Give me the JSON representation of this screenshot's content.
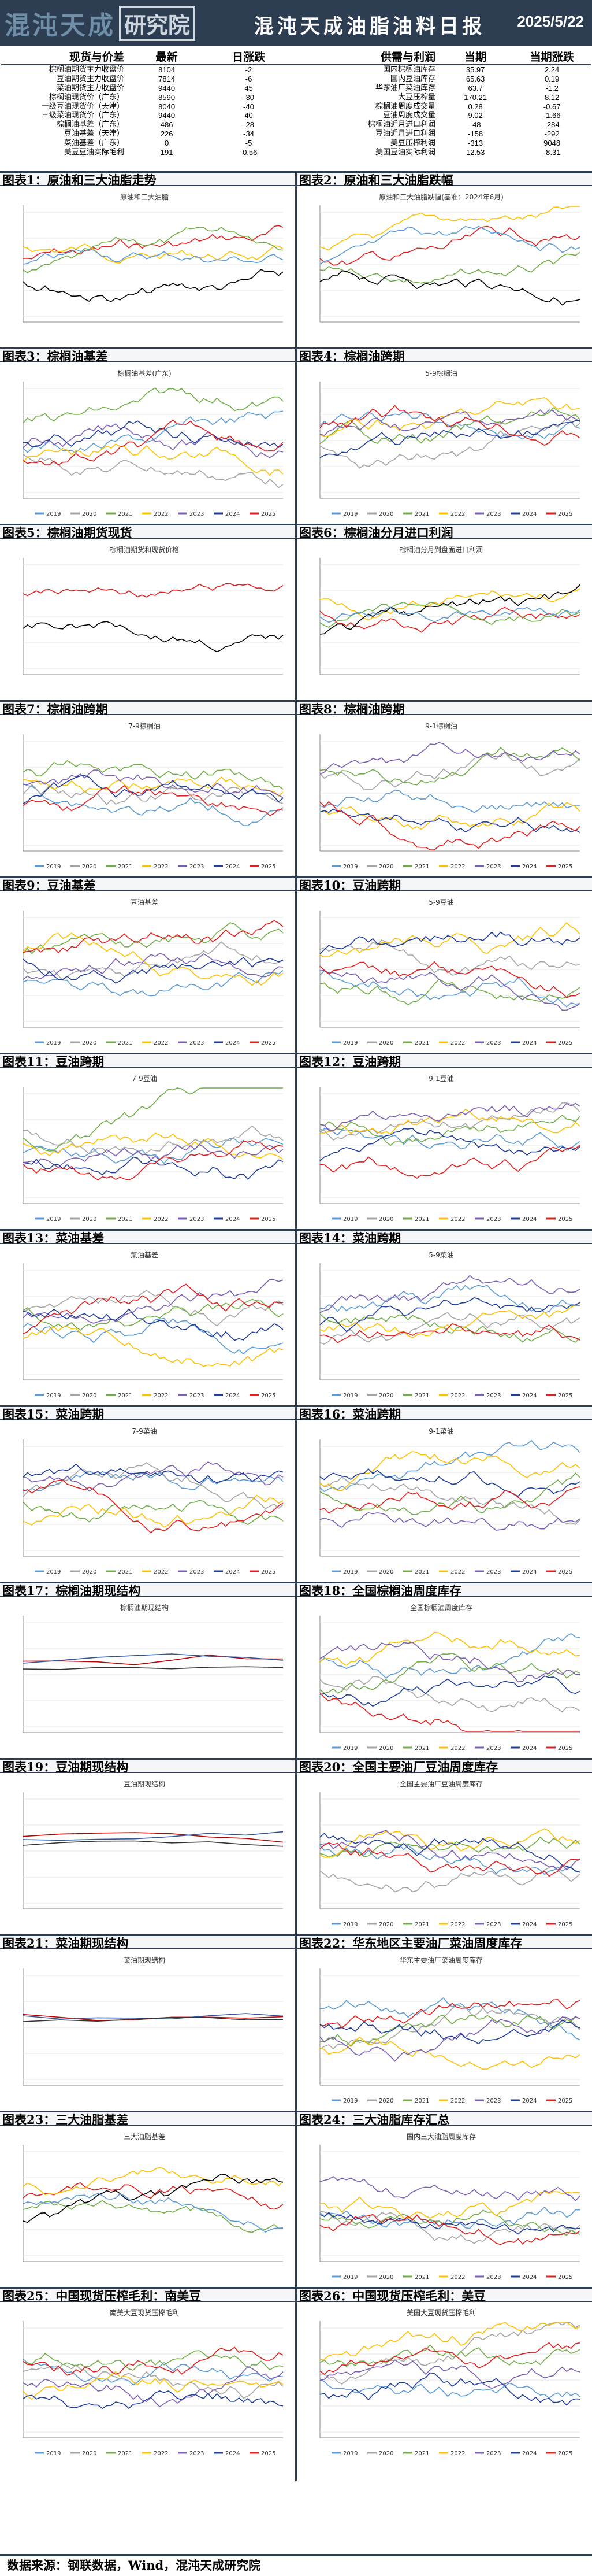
{
  "header": {
    "logo_chars": [
      "混",
      "沌",
      "天",
      "成"
    ],
    "logo_box": "研究院",
    "title": "混沌天成油脂油料日报",
    "date": "2025/5/22"
  },
  "table": {
    "headers": [
      "现货与价差",
      "最新",
      "日涨跌",
      "供需与利润",
      "当期",
      "当期涨跌"
    ],
    "rows": [
      [
        "棕榈油期货主力收盘价",
        "8104",
        "-2",
        "国内棕榈油库存",
        "35.97",
        "2.24"
      ],
      [
        "豆油期货主力收盘价",
        "7814",
        "-6",
        "国内豆油库存",
        "65.63",
        "0.19"
      ],
      [
        "菜油期货主力收盘价",
        "9440",
        "45",
        "华东油厂菜油库存",
        "63.7",
        "-1.2"
      ],
      [
        "棕榈油现货价（广东）",
        "8590",
        "-30",
        "大豆压榨量",
        "170.21",
        "8.12"
      ],
      [
        "一级豆油现货价（天津）",
        "8040",
        "-40",
        "棕榈油周度成交量",
        "0.28",
        "-0.67"
      ],
      [
        "三级菜油现货价（广东）",
        "9440",
        "40",
        "豆油周度成交量",
        "9.02",
        "-1.66"
      ],
      [
        "棕榈油基差（广东）",
        "486",
        "-28",
        "棕榈油近月进口利润",
        "-48",
        "-284"
      ],
      [
        "豆油基差（天津）",
        "226",
        "-34",
        "豆油近月进口利润",
        "-158",
        "-292"
      ],
      [
        "菜油基差（广东）",
        "0",
        "-5",
        "美豆压榨利润",
        "-313",
        "9048"
      ],
      [
        "美豆豆油实际毛利",
        "191",
        "-0.56",
        "美国豆油实际利润",
        "12.53",
        "-8.31"
      ]
    ]
  },
  "figures": [
    {
      "label": "图表1：",
      "title": "原油和三大油脂走势",
      "inner": "原油和三大油脂",
      "kind": "multi"
    },
    {
      "label": "图表2：",
      "title": "原油和三大油脂跌幅",
      "inner": "原油和三大油脂跌幅(基准：2024年6月)",
      "kind": "multi"
    },
    {
      "label": "图表3：",
      "title": "棕榈油基差",
      "inner": "棕榈油基差(广东)",
      "kind": "season"
    },
    {
      "label": "图表4：",
      "title": "棕榈油跨期",
      "inner": "5-9棕榈油",
      "kind": "season"
    },
    {
      "label": "图表5：",
      "title": "棕榈油期货现货",
      "inner": "棕榈油期货和现货价格",
      "kind": "two"
    },
    {
      "label": "图表6：",
      "title": "棕榈油分月进口利润",
      "inner": "棕榈油分月到盘面进口利润",
      "kind": "multi"
    },
    {
      "label": "图表7：",
      "title": "棕榈油跨期",
      "inner": "7-9棕榈油",
      "kind": "season"
    },
    {
      "label": "图表8：",
      "title": "棕榈油跨期",
      "inner": "9-1棕榈油",
      "kind": "season"
    },
    {
      "label": "图表9：",
      "title": "豆油基差",
      "inner": "豆油基差",
      "kind": "season"
    },
    {
      "label": "图表10：",
      "title": "豆油跨期",
      "inner": "5-9豆油",
      "kind": "season"
    },
    {
      "label": "图表11：",
      "title": "豆油跨期",
      "inner": "7-9豆油",
      "kind": "season"
    },
    {
      "label": "图表12：",
      "title": "豆油跨期",
      "inner": "9-1豆油",
      "kind": "season"
    },
    {
      "label": "图表13：",
      "title": "菜油基差",
      "inner": "菜油基差",
      "kind": "season"
    },
    {
      "label": "图表14：",
      "title": "菜油跨期",
      "inner": "5-9菜油",
      "kind": "season"
    },
    {
      "label": "图表15：",
      "title": "菜油跨期",
      "inner": "7-9菜油",
      "kind": "season"
    },
    {
      "label": "图表16：",
      "title": "菜油跨期",
      "inner": "9-1菜油",
      "kind": "season"
    },
    {
      "label": "图表17：",
      "title": "棕榈油期现结构",
      "inner": "棕榈油期现结构",
      "kind": "struct"
    },
    {
      "label": "图表18：",
      "title": "全国棕榈油周度库存",
      "inner": "全国棕榈油周度库存",
      "kind": "season"
    },
    {
      "label": "图表19：",
      "title": "豆油期现结构",
      "inner": "豆油期现结构",
      "kind": "struct"
    },
    {
      "label": "图表20：",
      "title": "全国主要油厂豆油周度库存",
      "inner": "全国主要油厂豆油周度库存",
      "kind": "season"
    },
    {
      "label": "图表21：",
      "title": "菜油期现结构",
      "inner": "菜油期现结构",
      "kind": "struct"
    },
    {
      "label": "图表22：",
      "title": "华东地区主要油厂菜油周度库存",
      "inner": "华东主要油厂菜油周度库存",
      "kind": "season"
    },
    {
      "label": "图表23：",
      "title": "三大油脂基差",
      "inner": "三大油脂基差",
      "kind": "multi"
    },
    {
      "label": "图表24：",
      "title": "三大油脂库存汇总",
      "inner": "国内三大油脂周度库存",
      "kind": "season"
    },
    {
      "label": "图表25：",
      "title": "中国现货压榨毛利：南美豆",
      "inner": "南美大豆现货压榨毛利",
      "kind": "season"
    },
    {
      "label": "图表26：",
      "title": "中国现货压榨毛利：美豆",
      "inner": "美国大豆现货压榨毛利",
      "kind": "season"
    }
  ],
  "season_legend": [
    "2019",
    "2020",
    "2021",
    "2022",
    "2023",
    "2024",
    "2025"
  ],
  "colors": {
    "header_bg": "#2e3e52",
    "s2019": "#5b9bd5",
    "s2020": "#a5a5a5",
    "s2021": "#70ad47",
    "s2022": "#ffc000",
    "s2023": "#7b5fb5",
    "s2024": "#1f3d99",
    "s2025": "#e02020"
  },
  "footer": {
    "source": "数据来源：钢联数据，Wind，混沌天成研究院"
  }
}
